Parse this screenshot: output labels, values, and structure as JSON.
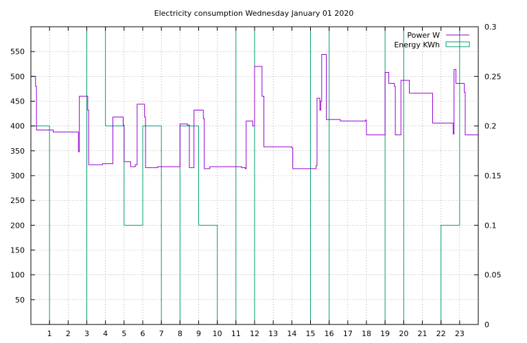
{
  "chart_data": {
    "type": "line",
    "title": "Electricity consumption Wednesday January 01 2020",
    "xlabel": "",
    "ylabel": "",
    "xlim": [
      0,
      24
    ],
    "ylim": [
      0,
      600
    ],
    "y2lim": [
      0,
      0.3
    ],
    "grid": true,
    "legend_position": "top-right",
    "x_ticks": [
      1,
      2,
      3,
      4,
      5,
      6,
      7,
      8,
      9,
      10,
      11,
      12,
      13,
      14,
      15,
      16,
      17,
      18,
      19,
      20,
      21,
      22,
      23
    ],
    "x_tick_labels": [
      "1",
      "2",
      "3",
      "4",
      "5",
      "6",
      "7",
      "8",
      "9",
      "10",
      "11",
      "12",
      "13",
      "14",
      "15",
      "16",
      "17",
      "18",
      "19",
      "20",
      "21",
      "22",
      "23"
    ],
    "y_ticks": [
      50,
      100,
      150,
      200,
      250,
      300,
      350,
      400,
      450,
      500,
      550
    ],
    "y_tick_labels": [
      "50",
      "100",
      "150",
      "200",
      "250",
      "300",
      "350",
      "400",
      "450",
      "500",
      "550"
    ],
    "y2_ticks": [
      0,
      0.05,
      0.1,
      0.15,
      0.2,
      0.25,
      0.3
    ],
    "y2_tick_labels": [
      "0",
      "0.05",
      "0.1",
      "0.15",
      "0.2",
      "0.25",
      "0.3"
    ],
    "series": [
      {
        "name": "Power W",
        "axis": "y",
        "style": "step",
        "color": "#9400d3",
        "points": [
          [
            0,
            500
          ],
          [
            0.25,
            480
          ],
          [
            0.3,
            392
          ],
          [
            1.2,
            388
          ],
          [
            2.5,
            388
          ],
          [
            2.55,
            348
          ],
          [
            2.6,
            460
          ],
          [
            3.05,
            432
          ],
          [
            3.1,
            322
          ],
          [
            3.85,
            324
          ],
          [
            4.4,
            418
          ],
          [
            4.95,
            402
          ],
          [
            5.0,
            328
          ],
          [
            5.35,
            318
          ],
          [
            5.6,
            322
          ],
          [
            5.7,
            444
          ],
          [
            6.1,
            418
          ],
          [
            6.15,
            316
          ],
          [
            6.8,
            318
          ],
          [
            8.0,
            404
          ],
          [
            8.4,
            402
          ],
          [
            8.5,
            316
          ],
          [
            8.75,
            432
          ],
          [
            9.25,
            415
          ],
          [
            9.3,
            314
          ],
          [
            9.6,
            318
          ],
          [
            11.3,
            316
          ],
          [
            11.5,
            314
          ],
          [
            11.55,
            410
          ],
          [
            11.9,
            400
          ],
          [
            12.0,
            520
          ],
          [
            12.4,
            460
          ],
          [
            12.5,
            358
          ],
          [
            14.0,
            356
          ],
          [
            14.05,
            314
          ],
          [
            15.3,
            320
          ],
          [
            15.35,
            456
          ],
          [
            15.5,
            432
          ],
          [
            15.55,
            450
          ],
          [
            15.6,
            544
          ],
          [
            15.85,
            413
          ],
          [
            16.6,
            410
          ],
          [
            17.95,
            412
          ],
          [
            18.0,
            382
          ],
          [
            19.0,
            508
          ],
          [
            19.2,
            486
          ],
          [
            19.5,
            480
          ],
          [
            19.55,
            382
          ],
          [
            19.85,
            492
          ],
          [
            20.3,
            466
          ],
          [
            21.5,
            466
          ],
          [
            21.55,
            406
          ],
          [
            22.6,
            406
          ],
          [
            22.65,
            384
          ],
          [
            22.7,
            514
          ],
          [
            22.8,
            486
          ],
          [
            23.25,
            468
          ],
          [
            23.3,
            382
          ],
          [
            24.0,
            386
          ]
        ]
      },
      {
        "name": "Energy KWh",
        "axis": "y2",
        "style": "histeps",
        "color": "#009e73",
        "hours": [
          0,
          1,
          2,
          3,
          4,
          5,
          6,
          7,
          8,
          9,
          10,
          11,
          12,
          13,
          14,
          15,
          16,
          17,
          18,
          19,
          20,
          21,
          22,
          23
        ],
        "values": [
          0.2,
          0,
          0,
          0.3,
          0.2,
          0.1,
          0.2,
          0,
          0.2,
          0.1,
          0,
          0.3,
          0,
          0,
          0,
          0.3,
          0,
          0,
          0,
          0.3,
          0,
          0,
          0.1,
          0.3
        ]
      }
    ]
  }
}
